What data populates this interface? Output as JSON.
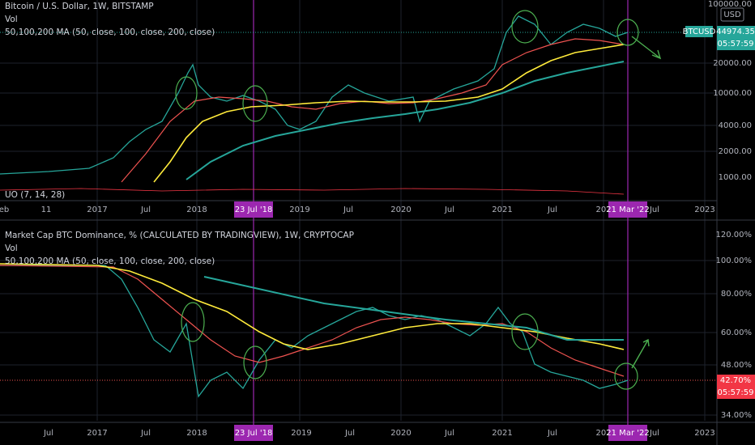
{
  "top_pane": {
    "legend": [
      "Bitcoin / U.S. Dollar, 1W, BITSTAMP",
      "Vol",
      "50,100,200 MA (50, close, 100, close, 200, close)"
    ],
    "indicator": "UO (7, 14, 28)",
    "currency": "USD",
    "price_axis": [
      "100000.00",
      "20000.00",
      "10000.00",
      "4000.00",
      "2000.00",
      "1000.00"
    ],
    "symbol_tag": "BTCUSD",
    "last_price": "44974.35",
    "countdown": "05:57:59",
    "time_axis": [
      "eb",
      "11",
      "2017",
      "Jul",
      "2018",
      "2019",
      "Jul",
      "2020",
      "Jul",
      "2021",
      "Jul",
      "202",
      "Jul",
      "2023"
    ],
    "highlight_dates": [
      "23 Jul '18",
      "21 Mar '22"
    ]
  },
  "bottom_pane": {
    "legend": [
      "Market Cap BTC Dominance, % (CALCULATED BY TRADINGVIEW), 1W, CRYPTOCAP",
      "Vol",
      "50,100,200 MA (50, close, 100, close, 200, close)"
    ],
    "price_axis": [
      "120.00%",
      "100.00%",
      "80.00%",
      "60.00%",
      "48.00%",
      "34.00%"
    ],
    "last_value": "42.70%",
    "countdown": "05:57:59",
    "time_axis": [
      "Jul",
      "2017",
      "Jul",
      "2018",
      "2019",
      "Jul",
      "2020",
      "Jul",
      "2021",
      "Jul",
      "202",
      "Jul",
      "2023"
    ],
    "highlight_dates": [
      "23 Jul '18",
      "21 Mar '22"
    ]
  }
}
